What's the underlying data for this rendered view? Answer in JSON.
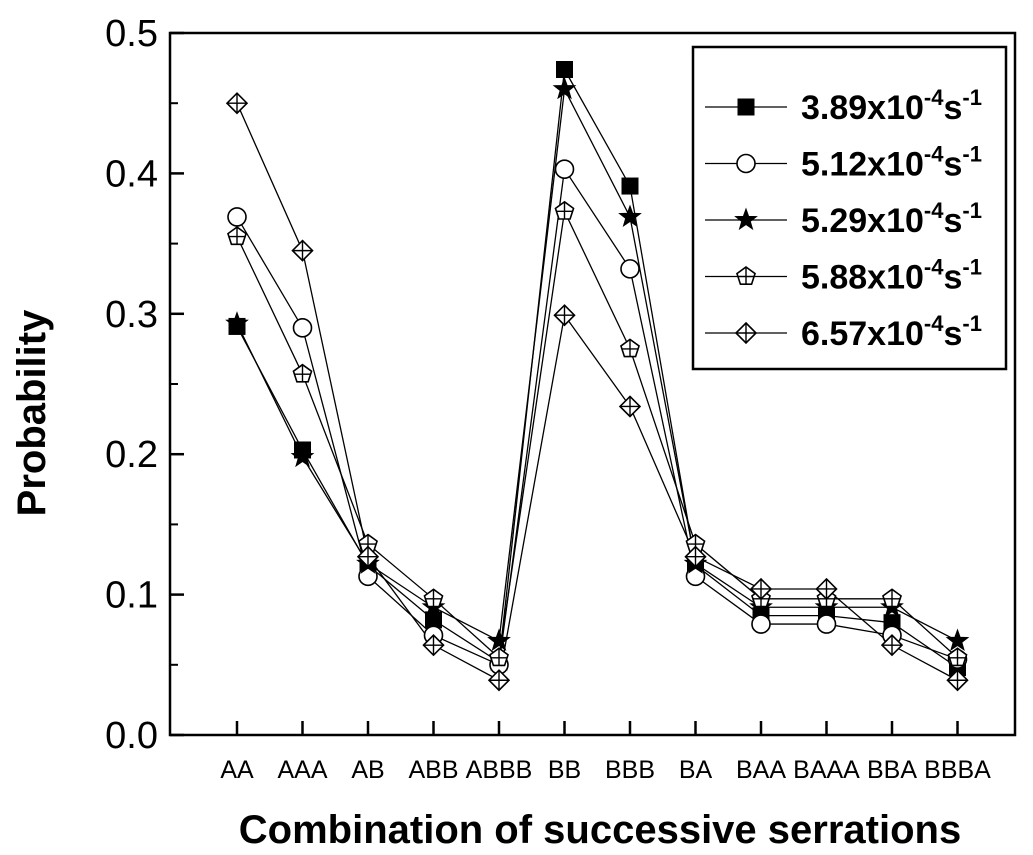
{
  "chart_data": {
    "type": "line",
    "title": "",
    "xlabel": "Combination of successive serrations",
    "ylabel": "Probability",
    "ylim": [
      0.0,
      0.5
    ],
    "yticks": [
      "0.0",
      "0.1",
      "0.2",
      "0.3",
      "0.4",
      "0.5"
    ],
    "grid": false,
    "legend_position": "top-right",
    "categories": [
      "AA",
      "AAA",
      "AB",
      "ABB",
      "ABBB",
      "BB",
      "BBB",
      "BA",
      "BAA",
      "BAAA",
      "BBA",
      "BBBA"
    ],
    "series": [
      {
        "name": "3.89x10-4s-1",
        "base": "3.89x10",
        "exp": "-4",
        "unit": "s",
        "unit_exp": "-1",
        "marker": "filled-square",
        "values": [
          0.291,
          0.203,
          0.121,
          0.082,
          0.052,
          0.474,
          0.391,
          0.121,
          0.085,
          0.085,
          0.08,
          0.048
        ]
      },
      {
        "name": "5.12x10-4s-1",
        "base": "5.12x10",
        "exp": "-4",
        "unit": "s",
        "unit_exp": "-1",
        "marker": "open-circle",
        "values": [
          0.369,
          0.29,
          0.113,
          0.071,
          0.05,
          0.403,
          0.332,
          0.113,
          0.079,
          0.079,
          0.071,
          0.054
        ]
      },
      {
        "name": "5.29x10-4s-1",
        "base": "5.29x10",
        "exp": "-4",
        "unit": "s",
        "unit_exp": "-1",
        "marker": "star",
        "values": [
          0.293,
          0.198,
          0.122,
          0.091,
          0.067,
          0.46,
          0.369,
          0.122,
          0.091,
          0.091,
          0.091,
          0.067
        ]
      },
      {
        "name": "5.88x10-4s-1",
        "base": "5.88x10",
        "exp": "-4",
        "unit": "s",
        "unit_exp": "-1",
        "marker": "crossed-pentagon",
        "values": [
          0.355,
          0.257,
          0.136,
          0.097,
          0.055,
          0.373,
          0.275,
          0.136,
          0.097,
          0.097,
          0.097,
          0.055
        ]
      },
      {
        "name": "6.57x10-4s-1",
        "base": "6.57x10",
        "exp": "-4",
        "unit": "s",
        "unit_exp": "-1",
        "marker": "crossed-diamond",
        "values": [
          0.45,
          0.345,
          0.127,
          0.064,
          0.039,
          0.299,
          0.234,
          0.127,
          0.104,
          0.104,
          0.064,
          0.039
        ]
      }
    ]
  }
}
